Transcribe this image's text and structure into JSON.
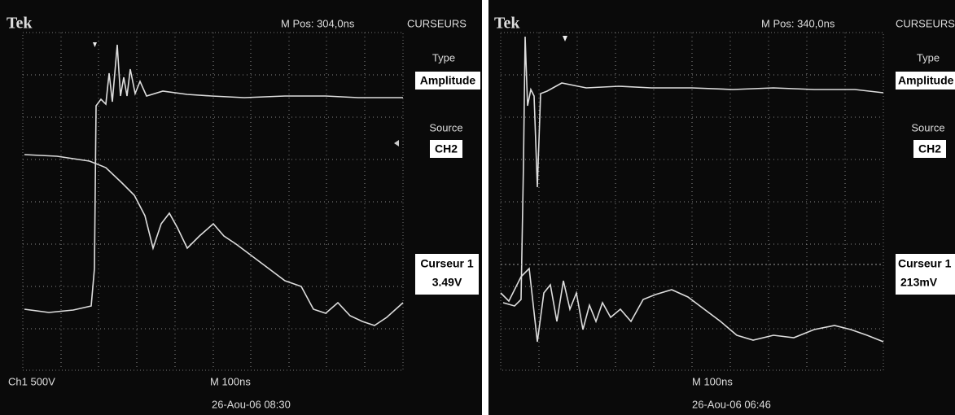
{
  "panels": [
    {
      "brand": "Tek",
      "position": "M Pos: 304,0ns",
      "menu_title": "CURSEURS",
      "type_label": "Type",
      "type_value": "Amplitude",
      "source_label": "Source",
      "source_value": "CH2",
      "cursor_label": "Curseur 1",
      "cursor_value": "3.49V",
      "channel": "Ch1 500V",
      "timebase": "M 100ns",
      "date": "26-Aou-06 08:30"
    },
    {
      "brand": "Tek",
      "position": "M Pos: 340,0ns",
      "menu_title": "CURSEURS",
      "type_label": "Type",
      "type_value": "Amplitude",
      "source_label": "Source",
      "source_value": "CH2",
      "cursor_label": "Curseur 1",
      "cursor_value": "213mV",
      "timebase": "M 100ns",
      "date": "26-Aou-06 06:46"
    }
  ]
}
